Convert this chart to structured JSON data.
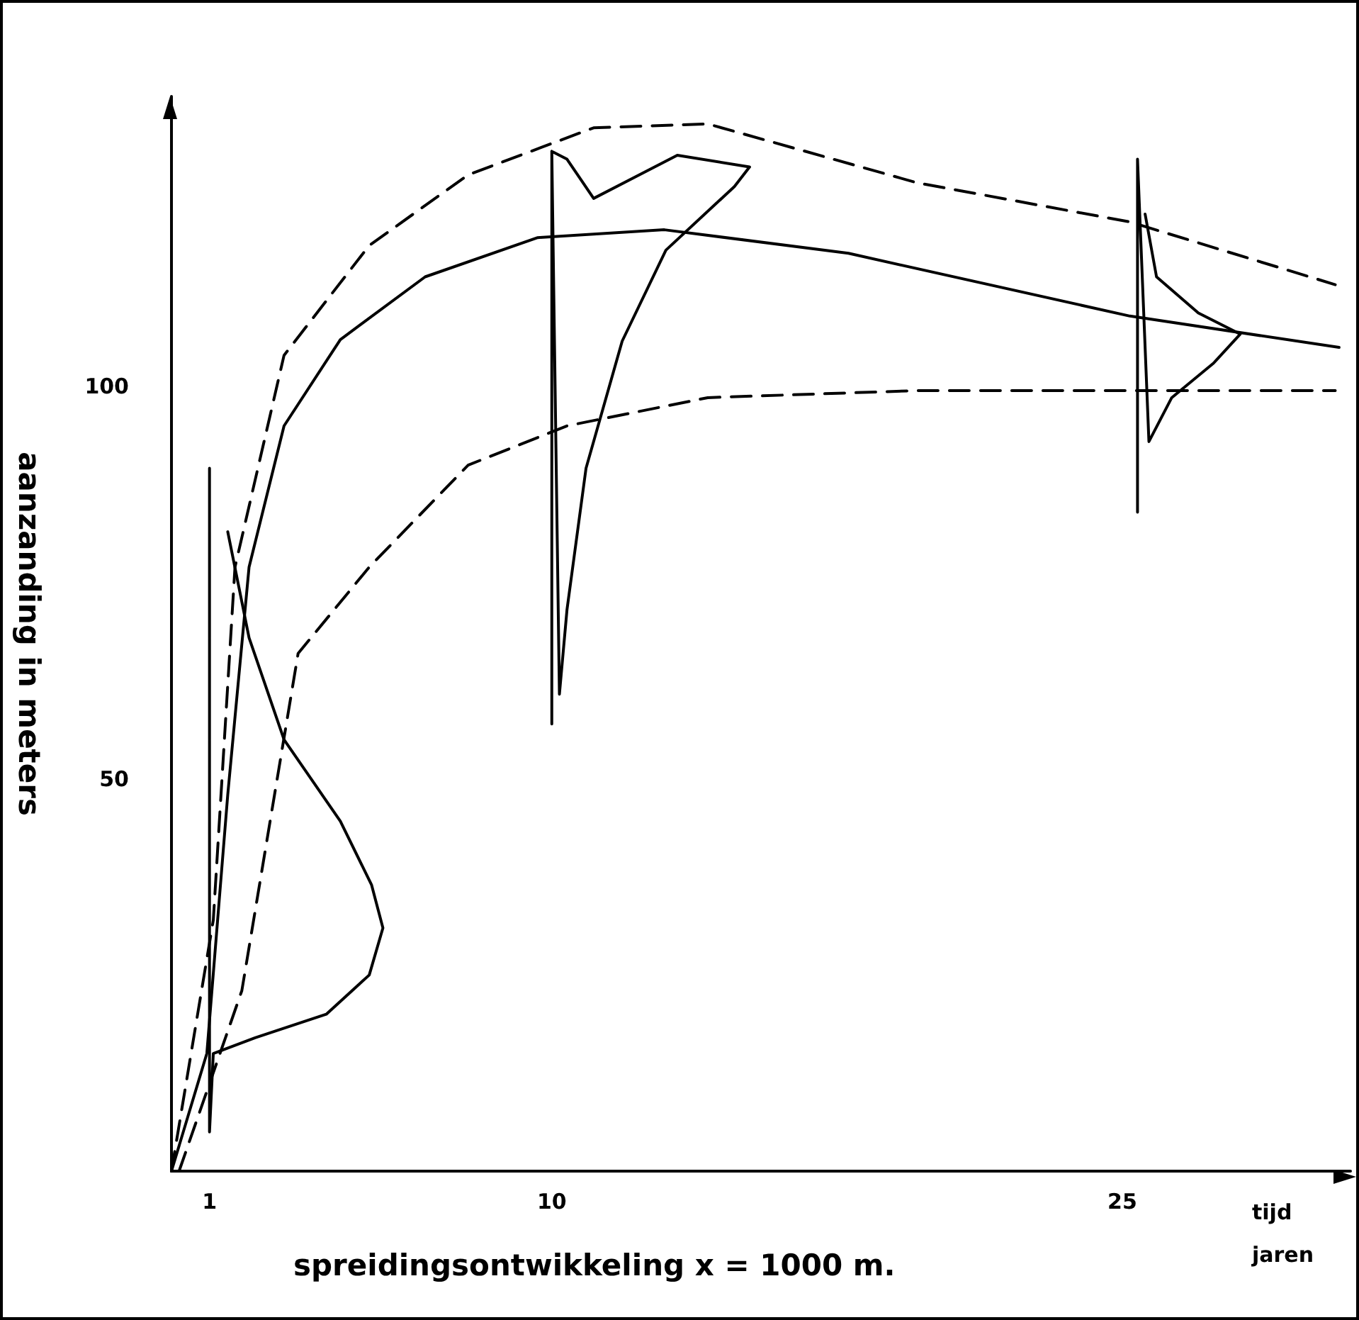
{
  "chart_data": {
    "type": "line",
    "xlabel": "tijd\njaren",
    "ylabel": "aanzanding in meters",
    "annotations": [
      "spreidingsontwikkeling x = 1000 m."
    ],
    "xlim": [
      0,
      31
    ],
    "xticks": [
      1,
      10,
      25
    ],
    "ylim": [
      0,
      137
    ],
    "yticks": [
      50,
      100
    ],
    "grid": false,
    "marker": "none",
    "series": [
      {
        "color": "#000000",
        "line_style": "solid",
        "x": [
          0,
          0.93,
          1.48,
          2.04,
          2.96,
          4.44,
          6.67,
          9.63,
          12.96,
          17.8,
          25.2,
          30.7
        ],
        "values": [
          0,
          15,
          48,
          77,
          95,
          106,
          114,
          119,
          120,
          117,
          109,
          105
        ]
      },
      {
        "color": "#000000",
        "line_style": "dashed",
        "x": [
          0,
          1.1,
          1.67,
          2.96,
          5.2,
          7.8,
          11.1,
          14.1,
          19.6,
          25.2,
          30.6
        ],
        "values": [
          0,
          32,
          77,
          104,
          118,
          127,
          133,
          133.5,
          126,
          121,
          113
        ]
      },
      {
        "color": "#000000",
        "line_style": "dashed",
        "x": [
          0.2,
          1.85,
          3.33,
          5.2,
          7.8,
          10.4,
          14.1,
          19.6,
          30.6
        ],
        "values": [
          0,
          23,
          66,
          77,
          90,
          95,
          98.6,
          99.5,
          99.5
        ]
      },
      {
        "color": "#000000",
        "line_style": "solid",
        "x": [
          1,
          1,
          1.1,
          2.2,
          4.07,
          5.2,
          5.56,
          5.26,
          4.44,
          2.96,
          2.04,
          1.48
        ],
        "values": [
          89.6,
          5,
          15,
          17,
          20,
          25,
          31,
          36.5,
          44.6,
          55,
          68,
          81.5
        ]
      },
      {
        "color": "#000000",
        "line_style": "solid",
        "x": [
          10,
          10,
          10.2,
          10.4,
          10.9,
          11.85,
          13,
          14.8,
          15.2,
          13.3,
          11.1,
          10.4,
          10
        ],
        "values": [
          57,
          130,
          60.8,
          71.6,
          89.6,
          105.8,
          117.4,
          125.5,
          128,
          129.5,
          124,
          129,
          130
        ]
      },
      {
        "color": "#000000",
        "line_style": "solid",
        "x": [
          25.4,
          25.4,
          25.7,
          26.3,
          27.4,
          28.1,
          27,
          25.9,
          25.6
        ],
        "values": [
          84,
          129,
          93,
          98.6,
          103,
          106.7,
          109.4,
          114,
          122
        ]
      }
    ]
  }
}
